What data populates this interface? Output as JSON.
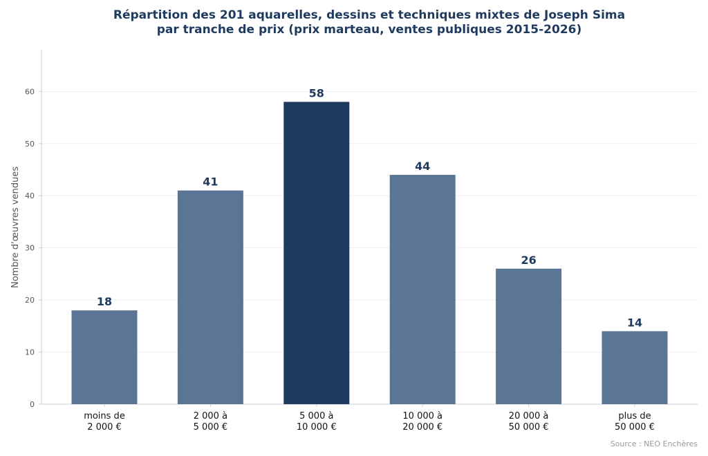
{
  "chart_data": {
    "type": "bar",
    "title_lines": [
      "Répartition des 201 aquarelles, dessins et techniques mixtes de Joseph Sima",
      "par tranche de prix (prix marteau, ventes publiques 2015-2026)"
    ],
    "ylabel": "Nombre d'œuvres vendues",
    "xlabel": "",
    "categories": [
      [
        "moins de",
        "2 000 €"
      ],
      [
        "2 000 à",
        "5 000 €"
      ],
      [
        "5 000 à",
        "10 000 €"
      ],
      [
        "10 000 à",
        "20 000 €"
      ],
      [
        "20 000 à",
        "50 000 €"
      ],
      [
        "plus de",
        "50 000 €"
      ]
    ],
    "values": [
      18,
      41,
      58,
      44,
      26,
      14
    ],
    "value_labels": [
      "18",
      "41",
      "58",
      "44",
      "26",
      "14"
    ],
    "highlight_index": 2,
    "ylim": [
      0,
      68
    ],
    "yticks": [
      0,
      10,
      20,
      30,
      40,
      50,
      60
    ],
    "ytick_labels": [
      "0",
      "10",
      "20",
      "30",
      "40",
      "50",
      "60"
    ],
    "grid": true,
    "colors": {
      "bar": "#5b7597",
      "highlight": "#1f3a5f",
      "label": "#1f3a5f",
      "grid": "#eeeeee",
      "axis": "#cccccc"
    }
  },
  "source": "Source : NEO Enchères"
}
